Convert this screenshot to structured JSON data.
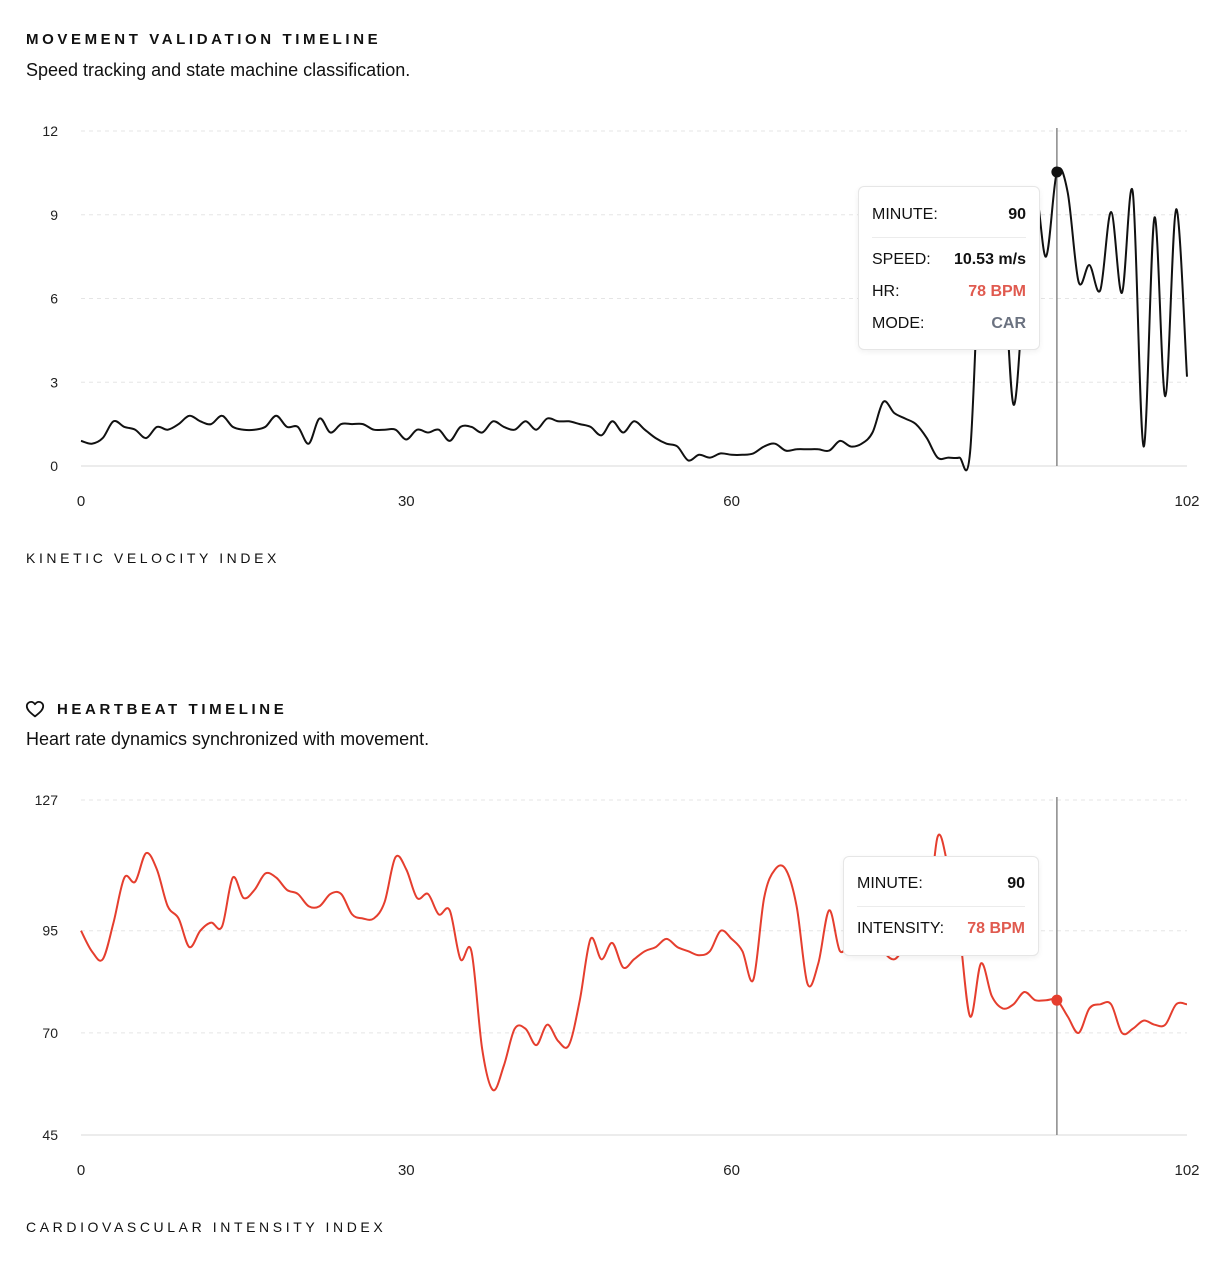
{
  "movement": {
    "title": "MOVEMENT VALIDATION TIMELINE",
    "subtitle": "Speed tracking and state machine classification.",
    "axis_caption": "KINETIC VELOCITY INDEX",
    "tooltip": {
      "minute_label": "MINUTE:",
      "minute_value": "90",
      "speed_label": "SPEED:",
      "speed_value": "10.53 m/s",
      "hr_label": "HR:",
      "hr_value": "78 BPM",
      "mode_label": "MODE:",
      "mode_value": "CAR"
    }
  },
  "heartbeat": {
    "icon": "heart-outline-icon",
    "title": "HEARTBEAT TIMELINE",
    "subtitle": "Heart rate dynamics synchronized with movement.",
    "axis_caption": "CARDIOVASCULAR INTENSITY INDEX",
    "tooltip": {
      "minute_label": "MINUTE:",
      "minute_value": "90",
      "intensity_label": "INTENSITY:",
      "intensity_value": "78 BPM"
    }
  },
  "colors": {
    "speed_line": "#111111",
    "hr_line": "#e53e2e",
    "hr_text": "#e05a4f",
    "mode_text": "#6b7280",
    "cursor": "#888888",
    "grid": "#e5e5e5"
  },
  "chart_data": [
    {
      "type": "line",
      "xlim": [
        0,
        102
      ],
      "ylim": [
        0,
        12
      ],
      "x_ticks": [
        0,
        30,
        60,
        102
      ],
      "y_ticks": [
        0,
        3,
        6,
        9,
        12
      ],
      "grid": "horizontal dashed",
      "highlight_x": 90,
      "x": [
        0,
        1,
        2,
        3,
        4,
        5,
        6,
        7,
        8,
        9,
        10,
        11,
        12,
        13,
        14,
        15,
        16,
        17,
        18,
        19,
        20,
        21,
        22,
        23,
        24,
        25,
        26,
        27,
        28,
        29,
        30,
        31,
        32,
        33,
        34,
        35,
        36,
        37,
        38,
        39,
        40,
        41,
        42,
        43,
        44,
        45,
        46,
        47,
        48,
        49,
        50,
        51,
        52,
        53,
        54,
        55,
        56,
        57,
        58,
        59,
        60,
        61,
        62,
        63,
        64,
        65,
        66,
        67,
        68,
        69,
        70,
        71,
        72,
        73,
        74,
        75,
        76,
        77,
        78,
        79,
        80,
        81,
        82,
        83,
        84,
        85,
        86,
        87,
        88,
        89,
        90,
        91,
        92,
        93,
        94,
        95,
        96,
        97,
        98,
        99,
        100,
        101,
        102
      ],
      "values": [
        0.9,
        0.8,
        1.0,
        1.6,
        1.4,
        1.3,
        1.0,
        1.4,
        1.3,
        1.5,
        1.8,
        1.6,
        1.5,
        1.8,
        1.4,
        1.3,
        1.3,
        1.4,
        1.8,
        1.4,
        1.4,
        0.8,
        1.7,
        1.2,
        1.5,
        1.5,
        1.5,
        1.3,
        1.3,
        1.3,
        0.95,
        1.3,
        1.2,
        1.3,
        0.9,
        1.4,
        1.4,
        1.2,
        1.6,
        1.4,
        1.3,
        1.6,
        1.3,
        1.7,
        1.6,
        1.6,
        1.5,
        1.4,
        1.1,
        1.6,
        1.2,
        1.6,
        1.3,
        1.0,
        0.8,
        0.7,
        0.2,
        0.4,
        0.3,
        0.45,
        0.4,
        0.4,
        0.45,
        0.7,
        0.8,
        0.55,
        0.6,
        0.6,
        0.6,
        0.55,
        0.9,
        0.7,
        0.8,
        1.2,
        2.3,
        1.9,
        1.7,
        1.5,
        1.0,
        0.3,
        0.3,
        0.3,
        0.5,
        8.5,
        9.0,
        7.8,
        2.2,
        6.5,
        9.8,
        7.5,
        10.53,
        9.8,
        6.6,
        7.2,
        6.3,
        9.1,
        6.2,
        9.8,
        0.7,
        8.9,
        2.5,
        9.2,
        3.2
      ],
      "name": ""
    },
    {
      "type": "line",
      "xlim": [
        0,
        102
      ],
      "ylim": [
        45,
        127
      ],
      "x_ticks": [
        0,
        30,
        60,
        102
      ],
      "y_ticks": [
        45,
        70,
        95,
        127
      ],
      "grid": "horizontal dashed",
      "highlight_x": 90,
      "x": [
        0,
        1,
        2,
        3,
        4,
        5,
        6,
        7,
        8,
        9,
        10,
        11,
        12,
        13,
        14,
        15,
        16,
        17,
        18,
        19,
        20,
        21,
        22,
        23,
        24,
        25,
        26,
        27,
        28,
        29,
        30,
        31,
        32,
        33,
        34,
        35,
        36,
        37,
        38,
        39,
        40,
        41,
        42,
        43,
        44,
        45,
        46,
        47,
        48,
        49,
        50,
        51,
        52,
        53,
        54,
        55,
        56,
        57,
        58,
        59,
        60,
        61,
        62,
        63,
        64,
        65,
        66,
        67,
        68,
        69,
        70,
        71,
        72,
        73,
        74,
        75,
        76,
        77,
        78,
        79,
        80,
        81,
        82,
        83,
        84,
        85,
        86,
        87,
        88,
        89,
        90,
        91,
        92,
        93,
        94,
        95,
        96,
        97,
        98,
        99,
        100,
        101,
        102
      ],
      "values": [
        95,
        90,
        88,
        97,
        108,
        107,
        114,
        110,
        101,
        98,
        91,
        95,
        97,
        96,
        108,
        103,
        105,
        109,
        108,
        105,
        104,
        101,
        101,
        104,
        104,
        99,
        98,
        98,
        102,
        113,
        110,
        103,
        104,
        99,
        100,
        88,
        90,
        66,
        56,
        62,
        71,
        71,
        67,
        72,
        68,
        67,
        78,
        93,
        88,
        92,
        86,
        88,
        90,
        91,
        93,
        91,
        90,
        89,
        90,
        95,
        93,
        90,
        83,
        103,
        110,
        110,
        101,
        82,
        87,
        100,
        90,
        93,
        95,
        95,
        90,
        88,
        91,
        93,
        95,
        118,
        110,
        95,
        74,
        87,
        79,
        76,
        77,
        80,
        78,
        78,
        78,
        74,
        70,
        76,
        77,
        77,
        70,
        71,
        73,
        72,
        72,
        77,
        77
      ],
      "name": ""
    }
  ]
}
